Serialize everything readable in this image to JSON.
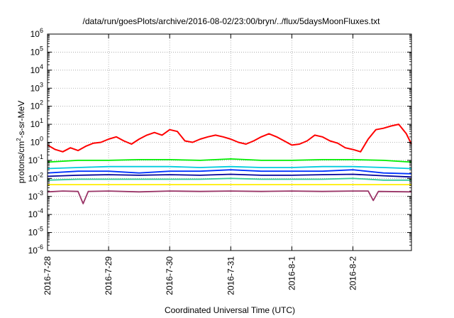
{
  "chart_data": {
    "type": "line",
    "title": "/data/run/goesPlots/archive/2016-08-02/23:00/bryn/../flux/5daysMoonFluxes.txt",
    "xlabel": "Coordinated Universal Time (UTC)",
    "ylabel": {
      "pre": "protons/cm",
      "sup": "2",
      "post": "-s-sr-MeV"
    },
    "y_scale": "log",
    "ylim": [
      1e-06,
      1000000.0
    ],
    "xlim": [
      "2016-07-28T00:00",
      "2016-08-02T23:00"
    ],
    "x_tick_labels": [
      "2016-7-28",
      "2016-7-29",
      "2016-7-30",
      "2016-7-31",
      "2016-8-1",
      "2016-8-2"
    ],
    "y_ticks": [
      {
        "base": "10",
        "exp": "-6"
      },
      {
        "base": "10",
        "exp": "-5"
      },
      {
        "base": "10",
        "exp": "-4"
      },
      {
        "base": "10",
        "exp": "-3"
      },
      {
        "base": "10",
        "exp": "-2"
      },
      {
        "base": "10",
        "exp": "-1"
      },
      {
        "base": "10",
        "exp": "0"
      },
      {
        "base": "10",
        "exp": "1"
      },
      {
        "base": "10",
        "exp": "2"
      },
      {
        "base": "10",
        "exp": "3"
      },
      {
        "base": "10",
        "exp": "4"
      },
      {
        "base": "10",
        "exp": "5"
      },
      {
        "base": "10",
        "exp": "6"
      }
    ],
    "grid": true,
    "series": [
      {
        "color": "#ff0000",
        "values": [
          [
            "2016-07-28T00:00",
            0.7
          ],
          [
            "2016-07-28T03:00",
            0.4
          ],
          [
            "2016-07-28T06:00",
            0.3
          ],
          [
            "2016-07-28T09:00",
            0.5
          ],
          [
            "2016-07-28T12:00",
            0.35
          ],
          [
            "2016-07-28T15:00",
            0.6
          ],
          [
            "2016-07-28T18:00",
            0.9
          ],
          [
            "2016-07-28T21:00",
            1.0
          ],
          [
            "2016-07-29T00:00",
            1.5
          ],
          [
            "2016-07-29T03:00",
            2.0
          ],
          [
            "2016-07-29T06:00",
            1.2
          ],
          [
            "2016-07-29T09:00",
            0.8
          ],
          [
            "2016-07-29T12:00",
            1.5
          ],
          [
            "2016-07-29T15:00",
            2.5
          ],
          [
            "2016-07-29T18:00",
            3.5
          ],
          [
            "2016-07-29T21:00",
            2.5
          ],
          [
            "2016-07-30T00:00",
            5.0
          ],
          [
            "2016-07-30T03:00",
            4.0
          ],
          [
            "2016-07-30T06:00",
            1.2
          ],
          [
            "2016-07-30T09:00",
            1.0
          ],
          [
            "2016-07-30T12:00",
            1.5
          ],
          [
            "2016-07-30T15:00",
            2.0
          ],
          [
            "2016-07-30T18:00",
            2.5
          ],
          [
            "2016-07-30T21:00",
            2.0
          ],
          [
            "2016-07-31T00:00",
            1.5
          ],
          [
            "2016-07-31T03:00",
            1.0
          ],
          [
            "2016-07-31T06:00",
            0.8
          ],
          [
            "2016-07-31T09:00",
            1.2
          ],
          [
            "2016-07-31T12:00",
            2.0
          ],
          [
            "2016-07-31T15:00",
            3.0
          ],
          [
            "2016-07-31T18:00",
            2.0
          ],
          [
            "2016-07-31T21:00",
            1.2
          ],
          [
            "2016-08-01T00:00",
            0.7
          ],
          [
            "2016-08-01T03:00",
            0.8
          ],
          [
            "2016-08-01T06:00",
            1.2
          ],
          [
            "2016-08-01T09:00",
            2.5
          ],
          [
            "2016-08-01T12:00",
            2.0
          ],
          [
            "2016-08-01T15:00",
            1.2
          ],
          [
            "2016-08-01T18:00",
            0.9
          ],
          [
            "2016-08-01T21:00",
            0.5
          ],
          [
            "2016-08-02T00:00",
            0.4
          ],
          [
            "2016-08-02T03:00",
            0.3
          ],
          [
            "2016-08-02T06:00",
            1.5
          ],
          [
            "2016-08-02T09:00",
            5.0
          ],
          [
            "2016-08-02T12:00",
            6.0
          ],
          [
            "2016-08-02T15:00",
            8.0
          ],
          [
            "2016-08-02T18:00",
            10.0
          ],
          [
            "2016-08-02T21:00",
            3.0
          ],
          [
            "2016-08-02T23:00",
            0.8
          ]
        ]
      },
      {
        "color": "#00ee00",
        "values": [
          [
            "2016-07-28T00:00",
            0.08
          ],
          [
            "2016-07-28T12:00",
            0.1
          ],
          [
            "2016-07-29T00:00",
            0.1
          ],
          [
            "2016-07-29T12:00",
            0.11
          ],
          [
            "2016-07-30T00:00",
            0.11
          ],
          [
            "2016-07-30T12:00",
            0.1
          ],
          [
            "2016-07-31T00:00",
            0.12
          ],
          [
            "2016-07-31T12:00",
            0.1
          ],
          [
            "2016-08-01T00:00",
            0.1
          ],
          [
            "2016-08-01T12:00",
            0.11
          ],
          [
            "2016-08-02T00:00",
            0.11
          ],
          [
            "2016-08-02T12:00",
            0.1
          ],
          [
            "2016-08-02T23:00",
            0.08
          ]
        ]
      },
      {
        "color": "#00ccdd",
        "values": [
          [
            "2016-07-28T00:00",
            0.035
          ],
          [
            "2016-07-28T12:00",
            0.04
          ],
          [
            "2016-07-29T00:00",
            0.045
          ],
          [
            "2016-07-29T12:00",
            0.045
          ],
          [
            "2016-07-30T00:00",
            0.045
          ],
          [
            "2016-07-30T12:00",
            0.04
          ],
          [
            "2016-07-31T00:00",
            0.045
          ],
          [
            "2016-07-31T12:00",
            0.04
          ],
          [
            "2016-08-01T00:00",
            0.04
          ],
          [
            "2016-08-01T12:00",
            0.045
          ],
          [
            "2016-08-02T00:00",
            0.045
          ],
          [
            "2016-08-02T12:00",
            0.04
          ],
          [
            "2016-08-02T23:00",
            0.035
          ]
        ]
      },
      {
        "color": "#0033ff",
        "values": [
          [
            "2016-07-28T00:00",
            0.02
          ],
          [
            "2016-07-28T12:00",
            0.025
          ],
          [
            "2016-07-29T00:00",
            0.025
          ],
          [
            "2016-07-29T12:00",
            0.02
          ],
          [
            "2016-07-30T00:00",
            0.025
          ],
          [
            "2016-07-30T12:00",
            0.025
          ],
          [
            "2016-07-31T00:00",
            0.03
          ],
          [
            "2016-07-31T12:00",
            0.025
          ],
          [
            "2016-08-01T00:00",
            0.025
          ],
          [
            "2016-08-01T12:00",
            0.025
          ],
          [
            "2016-08-02T00:00",
            0.03
          ],
          [
            "2016-08-02T12:00",
            0.02
          ],
          [
            "2016-08-02T23:00",
            0.018
          ]
        ]
      },
      {
        "color": "#000099",
        "values": [
          [
            "2016-07-28T00:00",
            0.013
          ],
          [
            "2016-07-28T12:00",
            0.015
          ],
          [
            "2016-07-29T00:00",
            0.016
          ],
          [
            "2016-07-29T12:00",
            0.015
          ],
          [
            "2016-07-30T00:00",
            0.016
          ],
          [
            "2016-07-30T12:00",
            0.015
          ],
          [
            "2016-07-31T00:00",
            0.017
          ],
          [
            "2016-07-31T12:00",
            0.015
          ],
          [
            "2016-08-01T00:00",
            0.015
          ],
          [
            "2016-08-01T12:00",
            0.016
          ],
          [
            "2016-08-02T00:00",
            0.017
          ],
          [
            "2016-08-02T12:00",
            0.014
          ],
          [
            "2016-08-02T23:00",
            0.012
          ]
        ]
      },
      {
        "color": "#33cc99",
        "values": [
          [
            "2016-07-28T00:00",
            0.008
          ],
          [
            "2016-07-28T12:00",
            0.009
          ],
          [
            "2016-07-29T00:00",
            0.009
          ],
          [
            "2016-07-29T12:00",
            0.009
          ],
          [
            "2016-07-30T00:00",
            0.009
          ],
          [
            "2016-07-30T12:00",
            0.009
          ],
          [
            "2016-07-31T00:00",
            0.01
          ],
          [
            "2016-07-31T12:00",
            0.009
          ],
          [
            "2016-08-01T00:00",
            0.009
          ],
          [
            "2016-08-01T12:00",
            0.009
          ],
          [
            "2016-08-02T00:00",
            0.01
          ],
          [
            "2016-08-02T12:00",
            0.008
          ],
          [
            "2016-08-02T23:00",
            0.008
          ]
        ]
      },
      {
        "color": "#ffee00",
        "values": [
          [
            "2016-07-28T00:00",
            0.0045
          ],
          [
            "2016-07-28T12:00",
            0.0045
          ],
          [
            "2016-07-29T00:00",
            0.0045
          ],
          [
            "2016-07-29T12:00",
            0.0045
          ],
          [
            "2016-07-30T00:00",
            0.0045
          ],
          [
            "2016-07-30T12:00",
            0.0045
          ],
          [
            "2016-07-31T00:00",
            0.0045
          ],
          [
            "2016-07-31T12:00",
            0.0045
          ],
          [
            "2016-08-01T00:00",
            0.0045
          ],
          [
            "2016-08-01T12:00",
            0.0045
          ],
          [
            "2016-08-02T00:00",
            0.0045
          ],
          [
            "2016-08-02T12:00",
            0.0045
          ],
          [
            "2016-08-02T23:00",
            0.0045
          ]
        ]
      },
      {
        "color": "#993366",
        "values": [
          [
            "2016-07-28T00:00",
            0.0018
          ],
          [
            "2016-07-28T06:00",
            0.002
          ],
          [
            "2016-07-28T12:00",
            0.0019
          ],
          [
            "2016-07-28T14:00",
            0.0004
          ],
          [
            "2016-07-28T16:00",
            0.0019
          ],
          [
            "2016-07-29T00:00",
            0.002
          ],
          [
            "2016-07-29T12:00",
            0.0018
          ],
          [
            "2016-07-30T00:00",
            0.002
          ],
          [
            "2016-07-30T12:00",
            0.0019
          ],
          [
            "2016-07-31T00:00",
            0.002
          ],
          [
            "2016-07-31T12:00",
            0.0019
          ],
          [
            "2016-08-01T00:00",
            0.002
          ],
          [
            "2016-08-01T12:00",
            0.0019
          ],
          [
            "2016-08-02T00:00",
            0.002
          ],
          [
            "2016-08-02T06:00",
            0.002
          ],
          [
            "2016-08-02T08:00",
            0.0006
          ],
          [
            "2016-08-02T10:00",
            0.0019
          ],
          [
            "2016-08-02T23:00",
            0.0018
          ]
        ]
      }
    ]
  }
}
